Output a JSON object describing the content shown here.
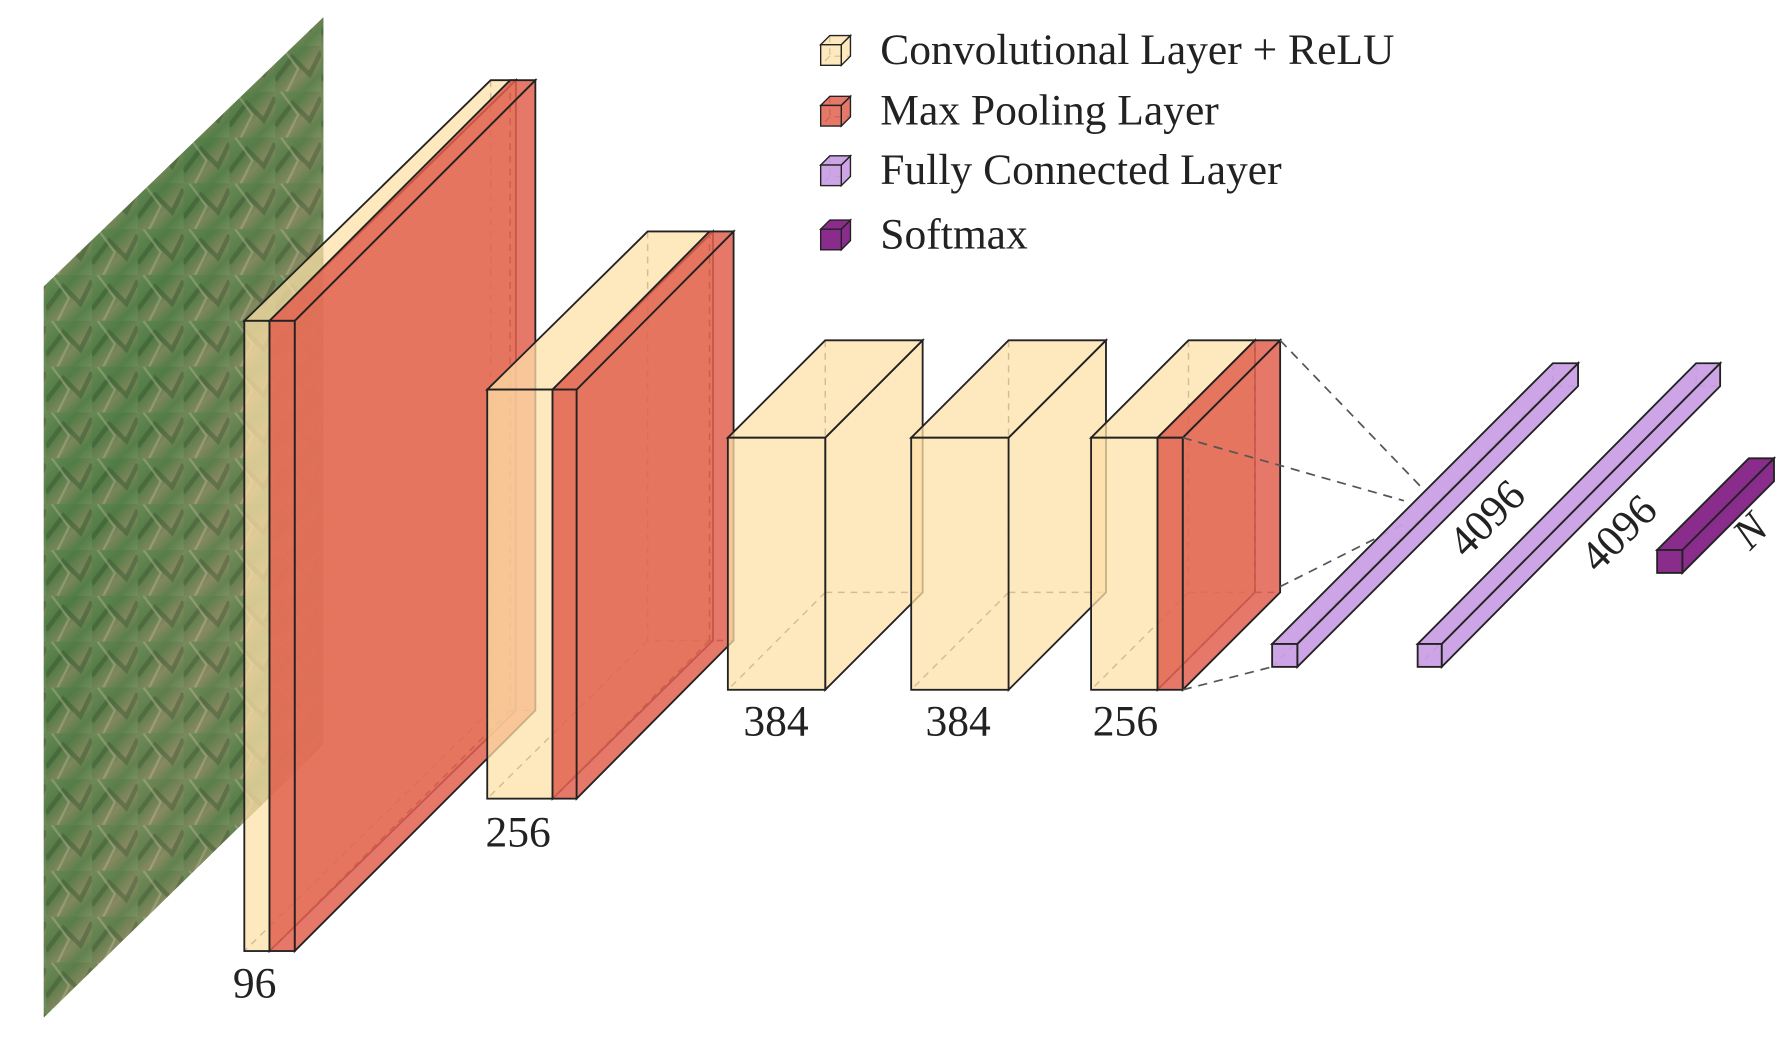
{
  "legend": [
    "Convolutional Layer + ReLU",
    "Max Pooling Layer",
    "Fully Connected Layer",
    "Softmax"
  ],
  "layer_labels": [
    "96",
    "256",
    "384",
    "384",
    "256",
    "4096",
    "4096",
    "N"
  ]
}
